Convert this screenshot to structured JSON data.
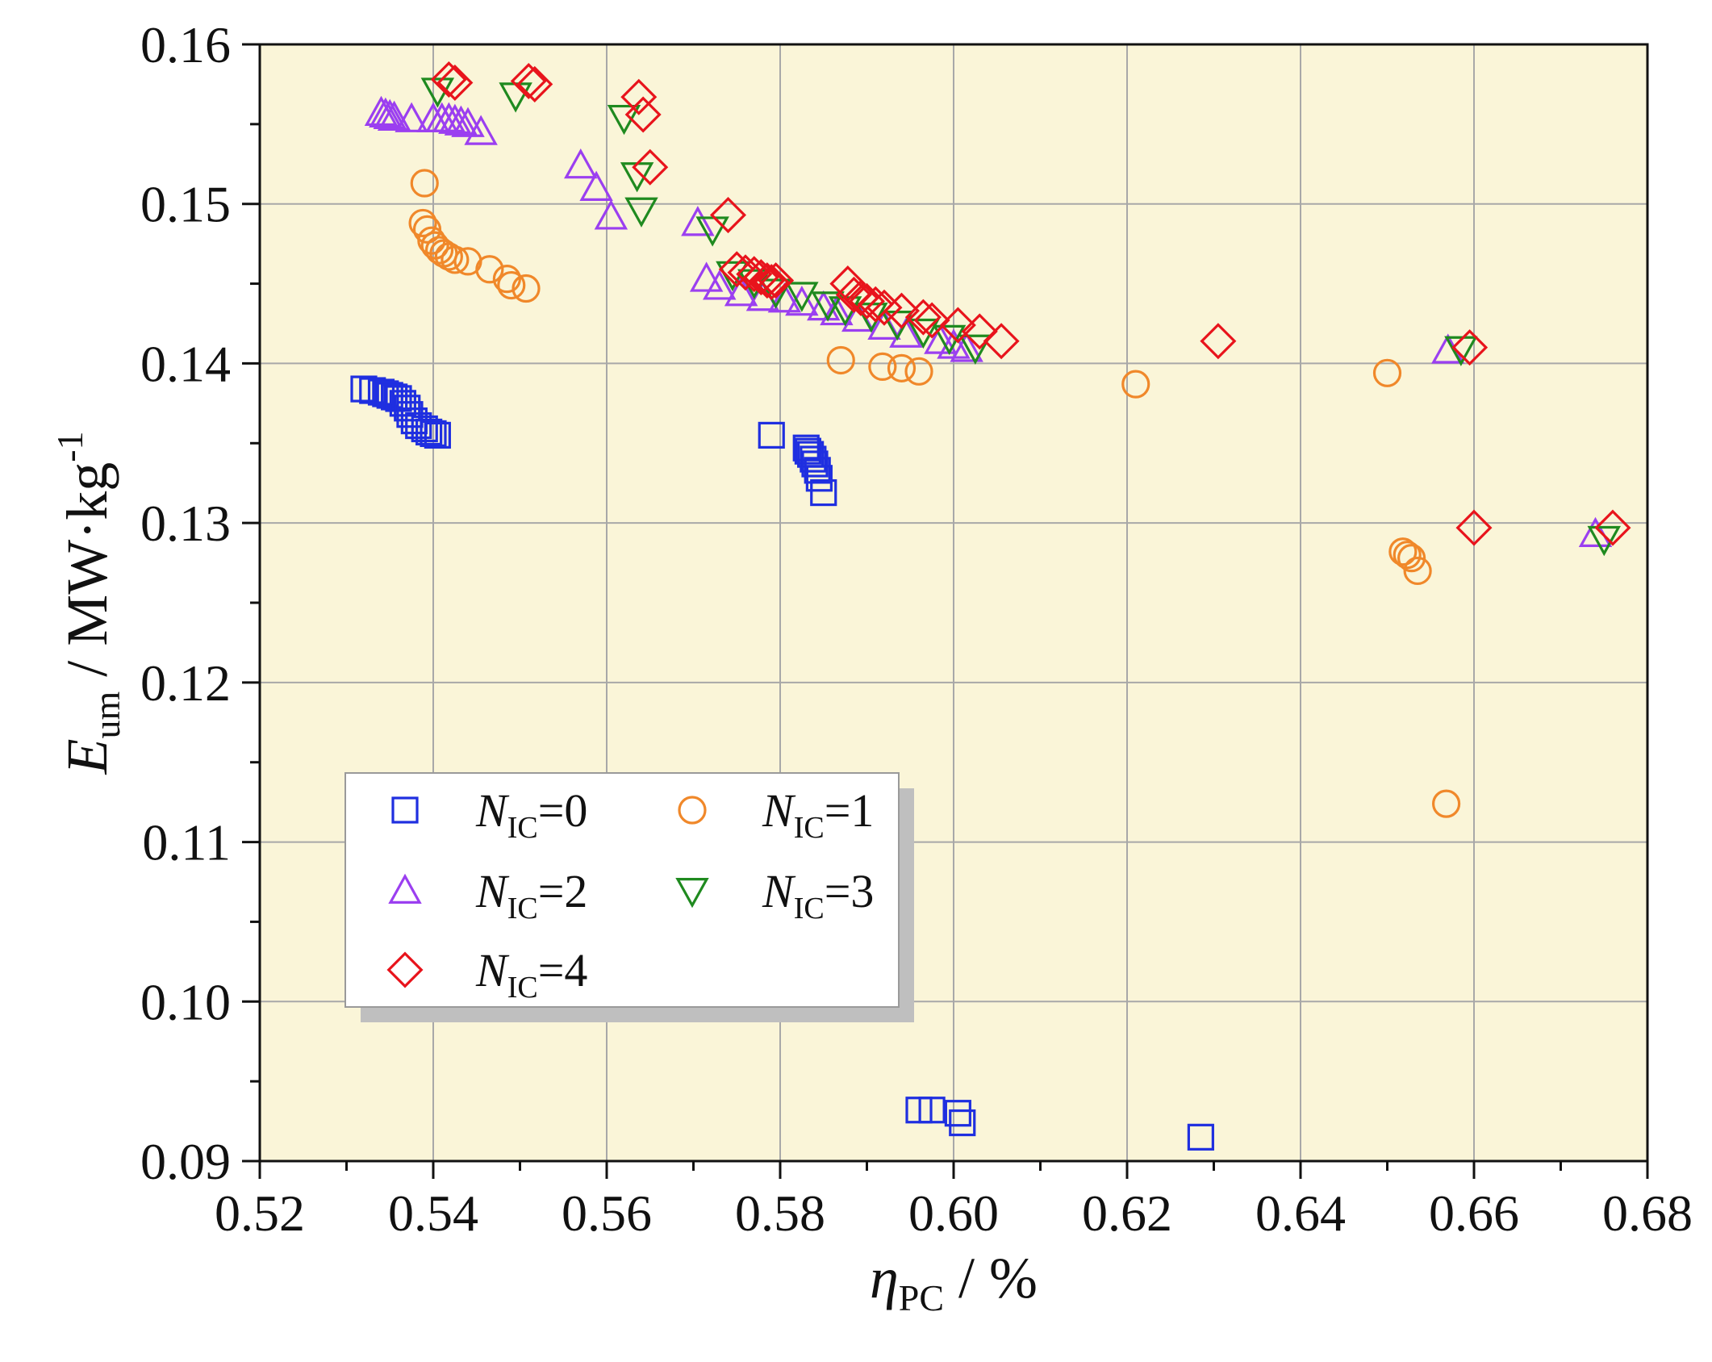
{
  "chart_data": {
    "type": "scatter",
    "xlim": [
      0.52,
      0.68
    ],
    "ylim": [
      0.09,
      0.16
    ],
    "x_ticks": [
      "0.52",
      "0.54",
      "0.56",
      "0.58",
      "0.60",
      "0.62",
      "0.64",
      "0.66",
      "0.68"
    ],
    "y_ticks": [
      "0.09",
      "0.10",
      "0.11",
      "0.12",
      "0.13",
      "0.14",
      "0.15",
      "0.16"
    ],
    "x_tick_values": [
      0.52,
      0.54,
      0.56,
      0.58,
      0.6,
      0.62,
      0.64,
      0.66,
      0.68
    ],
    "y_tick_values": [
      0.09,
      0.1,
      0.11,
      0.12,
      0.13,
      0.14,
      0.15,
      0.16
    ],
    "xlabel": {
      "symbol": "η",
      "sub": "PC",
      "unit": " / %"
    },
    "ylabel": {
      "symbol": "E",
      "sub": "um",
      "unit": " / MW·kg",
      "sup": "-1"
    },
    "grid": true,
    "plot_background": "#FAF5D8",
    "legend_position": "lower-left",
    "series": [
      {
        "label": {
          "symbol": "N",
          "sub": "IC",
          "text": "=0"
        },
        "marker": "square",
        "color": "#1F2FE0",
        "x": [
          0.532,
          0.533,
          0.534,
          0.5345,
          0.535,
          0.5355,
          0.536,
          0.5365,
          0.537,
          0.5373,
          0.5378,
          0.5383,
          0.539,
          0.5395,
          0.54,
          0.5405,
          0.579,
          0.583,
          0.5832,
          0.5835,
          0.5838,
          0.584,
          0.5843,
          0.5845,
          0.585,
          0.596,
          0.5975,
          0.6005,
          0.601,
          0.6285
        ],
        "y": [
          0.1384,
          0.1383,
          0.1382,
          0.1381,
          0.138,
          0.1379,
          0.1378,
          0.1375,
          0.1372,
          0.1368,
          0.1364,
          0.1361,
          0.1359,
          0.1357,
          0.1356,
          0.1355,
          0.1355,
          0.1347,
          0.1345,
          0.1343,
          0.134,
          0.1337,
          0.1333,
          0.1328,
          0.1319,
          0.0932,
          0.0932,
          0.093,
          0.0924,
          0.0915
        ]
      },
      {
        "label": {
          "symbol": "N",
          "sub": "IC",
          "text": "=1"
        },
        "marker": "circle",
        "color": "#F0882A",
        "x": [
          0.539,
          0.5388,
          0.5393,
          0.5398,
          0.5402,
          0.5407,
          0.5412,
          0.5418,
          0.5425,
          0.544,
          0.5465,
          0.5485,
          0.549,
          0.5507,
          0.587,
          0.5918,
          0.594,
          0.596,
          0.621,
          0.65,
          0.6518,
          0.6523,
          0.6528,
          0.6535,
          0.6568
        ],
        "y": [
          0.1513,
          0.1488,
          0.1484,
          0.1477,
          0.1474,
          0.1471,
          0.1469,
          0.1467,
          0.1465,
          0.1464,
          0.1459,
          0.1453,
          0.1449,
          0.1447,
          0.1402,
          0.1398,
          0.1397,
          0.1395,
          0.1387,
          0.1394,
          0.1282,
          0.128,
          0.1278,
          0.127,
          0.1124
        ]
      },
      {
        "label": {
          "symbol": "N",
          "sub": "IC",
          "text": "=2"
        },
        "marker": "triangle-up",
        "color": "#9B3FF0",
        "x": [
          0.534,
          0.5345,
          0.535,
          0.5355,
          0.5375,
          0.54,
          0.541,
          0.5418,
          0.5425,
          0.5432,
          0.544,
          0.5455,
          0.557,
          0.5588,
          0.5605,
          0.5705,
          0.5715,
          0.573,
          0.5755,
          0.578,
          0.5805,
          0.5825,
          0.585,
          0.5865,
          0.589,
          0.592,
          0.5945,
          0.5985,
          0.6,
          0.6015,
          0.657,
          0.674
        ],
        "y": [
          0.1557,
          0.1556,
          0.1555,
          0.1554,
          0.1553,
          0.1553,
          0.1553,
          0.1553,
          0.1552,
          0.1551,
          0.155,
          0.1545,
          0.1524,
          0.151,
          0.1492,
          0.1488,
          0.1453,
          0.1448,
          0.1444,
          0.1441,
          0.144,
          0.1438,
          0.1435,
          0.1432,
          0.1428,
          0.1423,
          0.1418,
          0.1414,
          0.1411,
          0.1409,
          0.1408,
          0.1293
        ]
      },
      {
        "label": {
          "symbol": "N",
          "sub": "IC",
          "text": "=3"
        },
        "marker": "triangle-down",
        "color": "#1F8A1F",
        "x": [
          0.5405,
          0.5495,
          0.562,
          0.5635,
          0.564,
          0.5722,
          0.5745,
          0.577,
          0.5795,
          0.5825,
          0.5855,
          0.5875,
          0.5905,
          0.5935,
          0.5965,
          0.5995,
          0.6025,
          0.6585,
          0.675
        ],
        "y": [
          0.1571,
          0.1568,
          0.1554,
          0.1518,
          0.1496,
          0.1484,
          0.1456,
          0.1451,
          0.1445,
          0.1443,
          0.1437,
          0.1434,
          0.143,
          0.1425,
          0.142,
          0.1416,
          0.141,
          0.1409,
          0.129
        ]
      },
      {
        "label": {
          "symbol": "N",
          "sub": "IC",
          "text": "=4"
        },
        "marker": "diamond",
        "color": "#E8141C",
        "x": [
          0.5418,
          0.5425,
          0.551,
          0.5517,
          0.5637,
          0.5642,
          0.565,
          0.574,
          0.575,
          0.576,
          0.577,
          0.5778,
          0.5785,
          0.579,
          0.5795,
          0.5878,
          0.5885,
          0.5893,
          0.59,
          0.591,
          0.592,
          0.594,
          0.5965,
          0.5975,
          0.6005,
          0.603,
          0.6055,
          0.6305,
          0.6595,
          0.66,
          0.676
        ],
        "y": [
          0.1578,
          0.1576,
          0.1577,
          0.1575,
          0.1567,
          0.1556,
          0.1523,
          0.1493,
          0.1459,
          0.1457,
          0.1456,
          0.1454,
          0.1452,
          0.1451,
          0.1452,
          0.145,
          0.1443,
          0.1441,
          0.1439,
          0.1437,
          0.1435,
          0.1433,
          0.1429,
          0.1427,
          0.1424,
          0.142,
          0.1414,
          0.1414,
          0.141,
          0.1297,
          0.1297
        ]
      }
    ]
  }
}
